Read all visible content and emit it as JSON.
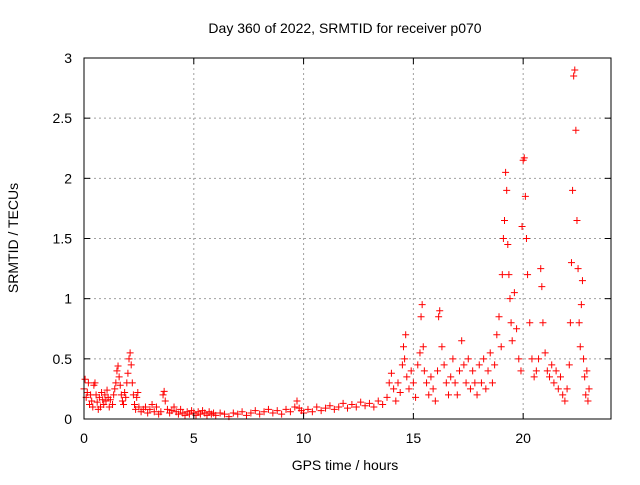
{
  "chart_data": {
    "type": "scatter",
    "title": "Day 360 of 2022, SRMTID for receiver p070",
    "xlabel": "GPS time / hours",
    "ylabel": "SRMTID / TECUs",
    "xlim": [
      0,
      24
    ],
    "ylim": [
      0,
      3
    ],
    "x_ticks": [
      0,
      5,
      10,
      15,
      20
    ],
    "x_tick_labels": [
      "0",
      "5",
      "10",
      "15",
      "20"
    ],
    "y_ticks": [
      0,
      0.5,
      1,
      1.5,
      2,
      2.5,
      3
    ],
    "y_tick_labels": [
      "0",
      "0.5",
      "1",
      "1.5",
      "2",
      "2.5",
      "3"
    ],
    "grid": true,
    "marker": "+",
    "series_color": "#ff0000",
    "series": [
      {
        "name": "SRMTID",
        "points": [
          [
            0.0,
            0.25
          ],
          [
            0.05,
            0.33
          ],
          [
            0.1,
            0.18
          ],
          [
            0.15,
            0.22
          ],
          [
            0.2,
            0.3
          ],
          [
            0.25,
            0.12
          ],
          [
            0.3,
            0.2
          ],
          [
            0.35,
            0.15
          ],
          [
            0.4,
            0.1
          ],
          [
            0.45,
            0.28
          ],
          [
            0.5,
            0.3
          ],
          [
            0.55,
            0.2
          ],
          [
            0.6,
            0.14
          ],
          [
            0.65,
            0.08
          ],
          [
            0.7,
            0.18
          ],
          [
            0.75,
            0.1
          ],
          [
            0.8,
            0.22
          ],
          [
            0.85,
            0.16
          ],
          [
            0.9,
            0.12
          ],
          [
            0.95,
            0.2
          ],
          [
            1.0,
            0.15
          ],
          [
            1.05,
            0.24
          ],
          [
            1.1,
            0.18
          ],
          [
            1.15,
            0.1
          ],
          [
            1.2,
            0.16
          ],
          [
            1.3,
            0.12
          ],
          [
            1.35,
            0.2
          ],
          [
            1.4,
            0.25
          ],
          [
            1.45,
            0.3
          ],
          [
            1.5,
            0.4
          ],
          [
            1.55,
            0.44
          ],
          [
            1.6,
            0.35
          ],
          [
            1.65,
            0.28
          ],
          [
            1.7,
            0.2
          ],
          [
            1.75,
            0.15
          ],
          [
            1.8,
            0.12
          ],
          [
            1.85,
            0.22
          ],
          [
            1.9,
            0.18
          ],
          [
            1.95,
            0.3
          ],
          [
            2.0,
            0.38
          ],
          [
            2.05,
            0.5
          ],
          [
            2.1,
            0.55
          ],
          [
            2.15,
            0.45
          ],
          [
            2.2,
            0.3
          ],
          [
            2.25,
            0.2
          ],
          [
            2.3,
            0.12
          ],
          [
            2.35,
            0.08
          ],
          [
            2.4,
            0.18
          ],
          [
            2.45,
            0.22
          ],
          [
            2.5,
            0.1
          ],
          [
            2.6,
            0.06
          ],
          [
            2.7,
            0.08
          ],
          [
            2.8,
            0.1
          ],
          [
            2.9,
            0.05
          ],
          [
            3.0,
            0.08
          ],
          [
            3.1,
            0.12
          ],
          [
            3.2,
            0.06
          ],
          [
            3.3,
            0.1
          ],
          [
            3.4,
            0.04
          ],
          [
            3.5,
            0.06
          ],
          [
            3.6,
            0.2
          ],
          [
            3.65,
            0.23
          ],
          [
            3.7,
            0.15
          ],
          [
            3.8,
            0.08
          ],
          [
            3.9,
            0.05
          ],
          [
            4.0,
            0.07
          ],
          [
            4.1,
            0.1
          ],
          [
            4.2,
            0.06
          ],
          [
            4.3,
            0.04
          ],
          [
            4.4,
            0.08
          ],
          [
            4.5,
            0.05
          ],
          [
            4.6,
            0.03
          ],
          [
            4.7,
            0.06
          ],
          [
            4.8,
            0.04
          ],
          [
            4.9,
            0.07
          ],
          [
            5.0,
            0.05
          ],
          [
            5.1,
            0.03
          ],
          [
            5.2,
            0.06
          ],
          [
            5.3,
            0.04
          ],
          [
            5.4,
            0.07
          ],
          [
            5.5,
            0.05
          ],
          [
            5.6,
            0.03
          ],
          [
            5.7,
            0.06
          ],
          [
            5.8,
            0.04
          ],
          [
            5.9,
            0.05
          ],
          [
            6.0,
            0.03
          ],
          [
            6.2,
            0.05
          ],
          [
            6.4,
            0.04
          ],
          [
            6.6,
            0.02
          ],
          [
            6.8,
            0.05
          ],
          [
            7.0,
            0.04
          ],
          [
            7.2,
            0.06
          ],
          [
            7.4,
            0.03
          ],
          [
            7.6,
            0.05
          ],
          [
            7.8,
            0.07
          ],
          [
            8.0,
            0.04
          ],
          [
            8.2,
            0.06
          ],
          [
            8.4,
            0.08
          ],
          [
            8.6,
            0.05
          ],
          [
            8.8,
            0.07
          ],
          [
            9.0,
            0.04
          ],
          [
            9.2,
            0.08
          ],
          [
            9.4,
            0.06
          ],
          [
            9.6,
            0.1
          ],
          [
            9.7,
            0.15
          ],
          [
            9.8,
            0.09
          ],
          [
            9.9,
            0.07
          ],
          [
            10.0,
            0.05
          ],
          [
            10.2,
            0.08
          ],
          [
            10.4,
            0.06
          ],
          [
            10.6,
            0.1
          ],
          [
            10.8,
            0.07
          ],
          [
            11.0,
            0.09
          ],
          [
            11.2,
            0.11
          ],
          [
            11.4,
            0.08
          ],
          [
            11.6,
            0.1
          ],
          [
            11.8,
            0.13
          ],
          [
            12.0,
            0.09
          ],
          [
            12.2,
            0.12
          ],
          [
            12.4,
            0.1
          ],
          [
            12.6,
            0.14
          ],
          [
            12.8,
            0.11
          ],
          [
            13.0,
            0.13
          ],
          [
            13.2,
            0.1
          ],
          [
            13.4,
            0.15
          ],
          [
            13.6,
            0.12
          ],
          [
            13.8,
            0.18
          ],
          [
            13.9,
            0.3
          ],
          [
            14.0,
            0.38
          ],
          [
            14.1,
            0.25
          ],
          [
            14.2,
            0.15
          ],
          [
            14.3,
            0.3
          ],
          [
            14.4,
            0.22
          ],
          [
            14.5,
            0.45
          ],
          [
            14.55,
            0.6
          ],
          [
            14.6,
            0.5
          ],
          [
            14.65,
            0.7
          ],
          [
            14.7,
            0.35
          ],
          [
            14.8,
            0.25
          ],
          [
            14.9,
            0.4
          ],
          [
            15.0,
            0.3
          ],
          [
            15.1,
            0.18
          ],
          [
            15.2,
            0.45
          ],
          [
            15.3,
            0.55
          ],
          [
            15.35,
            0.85
          ],
          [
            15.4,
            0.95
          ],
          [
            15.45,
            0.6
          ],
          [
            15.5,
            0.4
          ],
          [
            15.6,
            0.3
          ],
          [
            15.7,
            0.2
          ],
          [
            15.8,
            0.35
          ],
          [
            15.9,
            0.25
          ],
          [
            16.0,
            0.15
          ],
          [
            16.1,
            0.4
          ],
          [
            16.15,
            0.85
          ],
          [
            16.2,
            0.9
          ],
          [
            16.3,
            0.6
          ],
          [
            16.4,
            0.45
          ],
          [
            16.5,
            0.3
          ],
          [
            16.6,
            0.2
          ],
          [
            16.7,
            0.35
          ],
          [
            16.8,
            0.5
          ],
          [
            16.9,
            0.3
          ],
          [
            17.0,
            0.2
          ],
          [
            17.1,
            0.4
          ],
          [
            17.2,
            0.65
          ],
          [
            17.3,
            0.45
          ],
          [
            17.4,
            0.3
          ],
          [
            17.5,
            0.5
          ],
          [
            17.6,
            0.25
          ],
          [
            17.7,
            0.4
          ],
          [
            17.8,
            0.3
          ],
          [
            17.9,
            0.2
          ],
          [
            18.0,
            0.45
          ],
          [
            18.1,
            0.3
          ],
          [
            18.2,
            0.5
          ],
          [
            18.3,
            0.25
          ],
          [
            18.4,
            0.4
          ],
          [
            18.5,
            0.55
          ],
          [
            18.6,
            0.3
          ],
          [
            18.7,
            0.45
          ],
          [
            18.8,
            0.7
          ],
          [
            18.9,
            0.85
          ],
          [
            19.0,
            0.6
          ],
          [
            19.05,
            1.2
          ],
          [
            19.1,
            1.5
          ],
          [
            19.15,
            1.65
          ],
          [
            19.2,
            2.05
          ],
          [
            19.25,
            1.9
          ],
          [
            19.3,
            1.45
          ],
          [
            19.35,
            1.2
          ],
          [
            19.4,
            1.0
          ],
          [
            19.45,
            0.8
          ],
          [
            19.5,
            0.65
          ],
          [
            19.6,
            1.05
          ],
          [
            19.7,
            0.75
          ],
          [
            19.8,
            0.5
          ],
          [
            19.9,
            0.4
          ],
          [
            19.95,
            1.6
          ],
          [
            20.0,
            2.15
          ],
          [
            20.05,
            2.17
          ],
          [
            20.1,
            1.85
          ],
          [
            20.15,
            1.5
          ],
          [
            20.2,
            1.2
          ],
          [
            20.3,
            0.8
          ],
          [
            20.4,
            0.5
          ],
          [
            20.5,
            0.35
          ],
          [
            20.6,
            0.4
          ],
          [
            20.7,
            0.5
          ],
          [
            20.8,
            1.25
          ],
          [
            20.85,
            1.1
          ],
          [
            20.9,
            0.8
          ],
          [
            21.0,
            0.55
          ],
          [
            21.1,
            0.4
          ],
          [
            21.2,
            0.35
          ],
          [
            21.3,
            0.45
          ],
          [
            21.4,
            0.3
          ],
          [
            21.5,
            0.4
          ],
          [
            21.6,
            0.25
          ],
          [
            21.7,
            0.35
          ],
          [
            21.8,
            0.2
          ],
          [
            21.9,
            0.15
          ],
          [
            22.0,
            0.25
          ],
          [
            22.1,
            0.45
          ],
          [
            22.15,
            0.8
          ],
          [
            22.2,
            1.3
          ],
          [
            22.25,
            1.9
          ],
          [
            22.3,
            2.85
          ],
          [
            22.35,
            2.9
          ],
          [
            22.4,
            2.4
          ],
          [
            22.45,
            1.65
          ],
          [
            22.5,
            1.25
          ],
          [
            22.55,
            0.8
          ],
          [
            22.6,
            0.6
          ],
          [
            22.65,
            0.95
          ],
          [
            22.7,
            1.15
          ],
          [
            22.75,
            0.5
          ],
          [
            22.8,
            0.35
          ],
          [
            22.85,
            0.2
          ],
          [
            22.9,
            0.4
          ],
          [
            22.95,
            0.15
          ],
          [
            23.0,
            0.25
          ]
        ]
      }
    ]
  }
}
